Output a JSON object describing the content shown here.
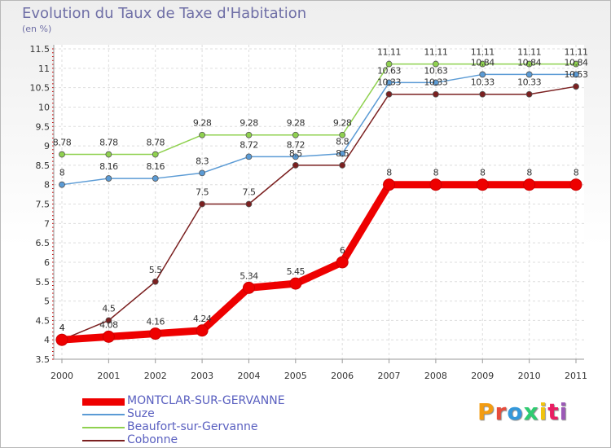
{
  "title": "Evolution du Taux de Taxe d'Habitation",
  "unit_label": "(en %)",
  "logo": {
    "text": "Proxiti",
    "colors": [
      "#f39c12",
      "#e74c3c",
      "#3498db",
      "#2ecc71",
      "#f1c40f",
      "#e91e63",
      "#9b59b6"
    ]
  },
  "chart_data": {
    "type": "line",
    "x": [
      "2000",
      "2001",
      "2002",
      "2003",
      "2004",
      "2005",
      "2006",
      "2007",
      "2008",
      "2009",
      "2010",
      "2011"
    ],
    "ylim": [
      3.5,
      11.5
    ],
    "yticks": [
      "3.5",
      "4",
      "4.5",
      "5",
      "5.5",
      "6",
      "6.5",
      "7",
      "7.5",
      "8",
      "8.5",
      "9",
      "9.5",
      "10",
      "10.5",
      "11",
      "11.5"
    ],
    "grid": true,
    "legend_position": "bottom",
    "series": [
      {
        "name": "MONTCLAR-SUR-GERVANNE",
        "color": "#ee0000",
        "values": [
          4,
          4.08,
          4.16,
          4.24,
          5.34,
          5.45,
          6,
          8,
          8,
          8,
          8,
          8
        ],
        "labels": [
          "4",
          "4.08",
          "4.16",
          "4.24",
          "5.34",
          "5.45",
          "6",
          "8",
          "8",
          "8",
          "8",
          "8"
        ]
      },
      {
        "name": "Suze",
        "color": "#5b9bd5",
        "values": [
          8,
          8.16,
          8.16,
          8.3,
          8.72,
          8.72,
          8.8,
          10.63,
          10.63,
          10.84,
          10.84,
          10.84
        ],
        "labels": [
          "8",
          "8.16",
          "8.16",
          "8.3",
          "8.72",
          "8.72",
          "8.8",
          "10.63",
          "10.63",
          "10.84",
          "10.84",
          "10.84"
        ]
      },
      {
        "name": "Beaufort-sur-Gervanne",
        "color": "#8fd14f",
        "values": [
          8.78,
          8.78,
          8.78,
          9.28,
          9.28,
          9.28,
          9.28,
          11.11,
          11.11,
          11.11,
          11.11,
          11.11
        ],
        "labels": [
          "8.78",
          "8.78",
          "8.78",
          "9.28",
          "9.28",
          "9.28",
          "9.28",
          "11.11",
          "11.11",
          "11.11",
          "11.11",
          "11.11"
        ]
      },
      {
        "name": "Cobonne",
        "color": "#7b2020",
        "values": [
          4,
          4.5,
          5.5,
          7.5,
          7.5,
          8.5,
          8.5,
          10.33,
          10.33,
          10.33,
          10.33,
          10.53
        ],
        "labels": [
          "4",
          "4.5",
          "5.5",
          "7.5",
          "7.5",
          "8.5",
          "8.5",
          "10.33",
          "10.33",
          "10.33",
          "10.33",
          "10.53"
        ]
      }
    ]
  }
}
